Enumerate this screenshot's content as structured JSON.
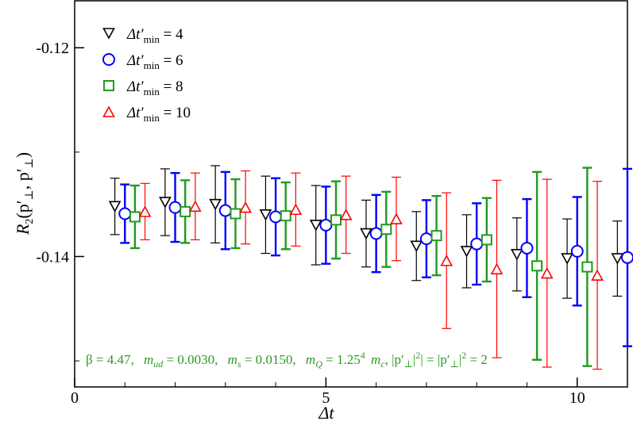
{
  "chart_data": {
    "type": "scatter",
    "title": "",
    "xlabel": "Δt",
    "ylabel": "R₂(p′⊥, p′⊥)",
    "xlim": [
      0,
      11
    ],
    "ylim": [
      -0.1525,
      -0.1155
    ],
    "x_ticks": [
      0,
      5,
      10
    ],
    "x_tick_labels": [
      "0",
      "5",
      "10"
    ],
    "y_ticks": [
      -0.12,
      -0.14
    ],
    "y_tick_labels": [
      "-0.12",
      "-0.14"
    ],
    "grid": false,
    "legend_position": "top-left",
    "annotation": {
      "beta": "β = 4.47,",
      "mud_sym": "m",
      "mud_sub": "ud",
      "mud_val": " = 0.0030,",
      "ms_sym": "m",
      "ms_sub": "s",
      "ms_val": " = 0.0150,",
      "mQ_sym": "m",
      "mQ_sub": "Q",
      "mQ_val": " = 1.25",
      "mQ_exp": "4",
      "mc_sym": "m",
      "mc_sub": "c",
      "mom_a": ",  |p′",
      "mom_a_sub": "⊥",
      "mom_b": "| = |p′",
      "mom_b_sub": "⊥",
      "mom_c": "| = 2",
      "exp2": "2"
    },
    "series": [
      {
        "name": "Δt′min = 4",
        "legend_prefix": "Δt′",
        "legend_sub": "min",
        "legend_value": " = 4",
        "marker": "triangle-down",
        "color": "#000000",
        "x": [
          0.8,
          1.8,
          2.8,
          3.8,
          4.8,
          5.8,
          6.8,
          7.8,
          8.8,
          9.8,
          10.8
        ],
        "y": [
          -0.1352,
          -0.1348,
          -0.135,
          -0.136,
          -0.137,
          -0.1378,
          -0.139,
          -0.1395,
          -0.1398,
          -0.1402,
          -0.1402
        ],
        "err": [
          0.0027,
          0.0032,
          0.0037,
          0.0037,
          0.0038,
          0.0032,
          0.0033,
          0.0035,
          0.0035,
          0.0038,
          0.0036
        ]
      },
      {
        "name": "Δt′min = 6",
        "legend_prefix": "Δt′",
        "legend_sub": "min",
        "legend_value": " = 6",
        "marker": "circle",
        "color": "#0000ff",
        "x": [
          1.0,
          2.0,
          3.0,
          4.0,
          5.0,
          6.0,
          7.0,
          8.0,
          9.0,
          10.0,
          11.0
        ],
        "y": [
          -0.1359,
          -0.1353,
          -0.1356,
          -0.1362,
          -0.137,
          -0.1378,
          -0.1383,
          -0.1388,
          -0.1392,
          -0.1395,
          -0.1401
        ],
        "err": [
          0.0028,
          0.0033,
          0.0037,
          0.0037,
          0.0037,
          0.0037,
          0.0037,
          0.0039,
          0.0047,
          0.0052,
          0.0085
        ]
      },
      {
        "name": "Δt′min = 8",
        "legend_prefix": "Δt′",
        "legend_sub": "min",
        "legend_value": " = 8",
        "marker": "square",
        "color": "#1f9a1f",
        "x": [
          1.2,
          2.2,
          3.2,
          4.2,
          5.2,
          6.2,
          7.2,
          8.2,
          9.2,
          10.2
        ],
        "y": [
          -0.1362,
          -0.1357,
          -0.1359,
          -0.1361,
          -0.1365,
          -0.1374,
          -0.138,
          -0.1384,
          -0.1409,
          -0.141
        ],
        "err": [
          0.003,
          0.003,
          0.0033,
          0.0032,
          0.0037,
          0.0036,
          0.0038,
          0.004,
          0.009,
          0.0095
        ]
      },
      {
        "name": "Δt′min = 10",
        "legend_prefix": "Δt′",
        "legend_sub": "min",
        "legend_value": " = 10",
        "marker": "triangle-up",
        "color": "#ff0000",
        "x": [
          1.4,
          2.4,
          3.4,
          4.4,
          5.4,
          6.4,
          7.4,
          8.4,
          9.4,
          10.4
        ],
        "y": [
          -0.1357,
          -0.1352,
          -0.1353,
          -0.1355,
          -0.136,
          -0.1364,
          -0.1404,
          -0.1412,
          -0.1416,
          -0.1418
        ],
        "err": [
          0.0027,
          0.0032,
          0.0035,
          0.0035,
          0.0037,
          0.004,
          0.0065,
          0.0085,
          0.009,
          0.009
        ]
      }
    ]
  }
}
